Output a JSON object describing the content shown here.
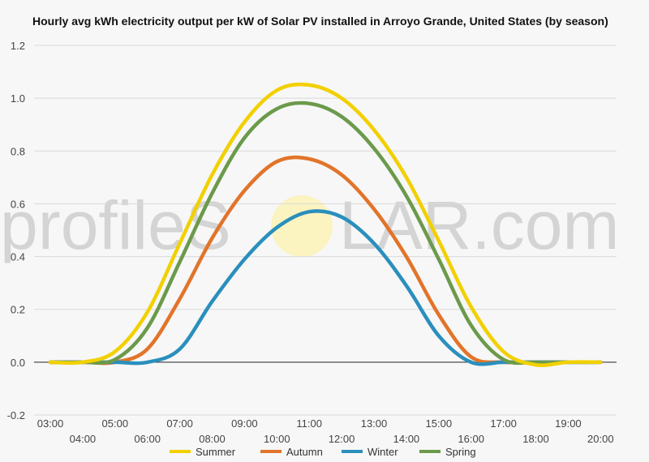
{
  "watermark": {
    "text_left": "profileS",
    "text_right": "LAR.com"
  },
  "chart_data": {
    "type": "line",
    "title": "Hourly avg kWh electricity output per kW of Solar PV installed in Arroyo Grande, United States (by season)",
    "x": [
      "03:00",
      "04:00",
      "05:00",
      "06:00",
      "07:00",
      "08:00",
      "09:00",
      "10:00",
      "11:00",
      "12:00",
      "13:00",
      "14:00",
      "15:00",
      "16:00",
      "17:00",
      "18:00",
      "19:00",
      "20:00"
    ],
    "ylim": [
      -0.2,
      1.2
    ],
    "yticks": [
      -0.2,
      0.0,
      0.2,
      0.4,
      0.6,
      0.8,
      1.0,
      1.2
    ],
    "ytick_labels": [
      "-0.2",
      "0.0",
      "0.2",
      "0.4",
      "0.6",
      "0.8",
      "1.0",
      "1.2"
    ],
    "grid": true,
    "legend_position": "bottom",
    "series": [
      {
        "name": "Summer",
        "color": "#f2d000",
        "values": [
          0.0,
          0.0,
          0.04,
          0.19,
          0.45,
          0.71,
          0.91,
          1.03,
          1.05,
          1.0,
          0.88,
          0.7,
          0.46,
          0.21,
          0.04,
          -0.01,
          0.0,
          0.0
        ]
      },
      {
        "name": "Autumn",
        "color": "#e2742a",
        "values": [
          0.0,
          0.0,
          0.0,
          0.05,
          0.24,
          0.47,
          0.65,
          0.76,
          0.77,
          0.71,
          0.58,
          0.4,
          0.18,
          0.02,
          0.0,
          0.0,
          0.0,
          0.0
        ]
      },
      {
        "name": "Winter",
        "color": "#2a8fbd",
        "values": [
          0.0,
          0.0,
          0.0,
          0.0,
          0.05,
          0.23,
          0.39,
          0.51,
          0.57,
          0.55,
          0.45,
          0.29,
          0.1,
          0.0,
          0.0,
          0.0,
          0.0,
          0.0
        ]
      },
      {
        "name": "Spring",
        "color": "#6b9a4b",
        "values": [
          0.0,
          0.0,
          0.01,
          0.13,
          0.38,
          0.64,
          0.85,
          0.96,
          0.98,
          0.93,
          0.81,
          0.63,
          0.39,
          0.14,
          0.01,
          0.0,
          0.0,
          0.0
        ]
      }
    ]
  }
}
